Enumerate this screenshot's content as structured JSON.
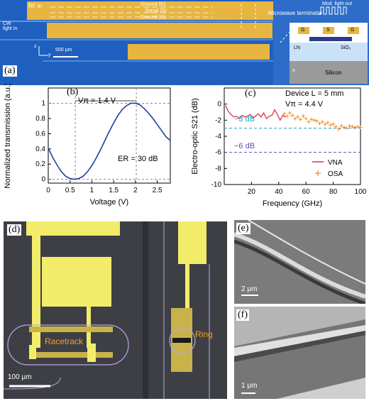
{
  "figure": {
    "panel_a": {
      "label": "(a)",
      "rf_in": "RF in",
      "cw_light": "CW\nlight in",
      "ground_top": "Ground (G)",
      "signal": "Signal (S)",
      "ground_bottom": "Ground (G)",
      "microwave_terminator": "Microwave terminator",
      "mod_light_out": "Mod. light out",
      "scale_bar": "500 µm",
      "axis_z": "z",
      "axis_y": "y",
      "axis_x": "x",
      "cs_g1": "G",
      "cs_s": "S",
      "cs_g2": "G",
      "cs_ln": "LN",
      "cs_sio2": "SiO₂",
      "cs_silicon": "Silicon"
    },
    "panel_b": {
      "label": "(b)",
      "ylabel": "Normalized transmission (a.u.)",
      "xlabel": "Voltage (V)",
      "annotation_vpi": "Vπ = 1.4 V",
      "annotation_er": "ER = 30 dB"
    },
    "panel_c": {
      "label": "(c)",
      "ylabel": "Electro-optic S21 (dB)",
      "xlabel": "Frequency (GHz)",
      "device": "Device L = 5 mm",
      "vpi": "Vπ = 4.4 V",
      "minus3": "−3 dB",
      "minus6": "−6 dB",
      "legend_vna": "VNA",
      "legend_osa": "OSA"
    },
    "panel_d": {
      "label": "(d)",
      "racetrack": "Racetrack",
      "ring": "Ring",
      "scale_bar": "100 µm"
    },
    "panel_e": {
      "label": "(e)",
      "scale_bar": "2 µm"
    },
    "panel_f": {
      "label": "(f)",
      "scale_bar": "1 µm"
    }
  },
  "chart_data": [
    {
      "type": "line",
      "panel": "b",
      "xlabel": "Voltage (V)",
      "ylabel": "Normalized transmission (a.u.)",
      "xlim": [
        0,
        2.8
      ],
      "ylim": [
        -0.05,
        1.2
      ],
      "xticks": [
        0,
        0.5,
        1,
        1.5,
        2,
        2.5
      ],
      "yticks": [
        0,
        0.2,
        0.4,
        0.6,
        0.8,
        1
      ],
      "series": [
        {
          "color": "#1f3fa0",
          "x": [
            0,
            0.1,
            0.2,
            0.3,
            0.4,
            0.5,
            0.6,
            0.7,
            0.8,
            0.9,
            1.0,
            1.1,
            1.2,
            1.3,
            1.4,
            1.5,
            1.6,
            1.7,
            1.8,
            1.9,
            2.0,
            2.1,
            2.2,
            2.3,
            2.4,
            2.5,
            2.6,
            2.7,
            2.8
          ],
          "y": [
            0.41,
            0.29,
            0.19,
            0.1,
            0.04,
            0.01,
            0.0,
            0.01,
            0.04,
            0.1,
            0.18,
            0.28,
            0.39,
            0.51,
            0.63,
            0.74,
            0.84,
            0.92,
            0.97,
            1.0,
            1.0,
            0.98,
            0.93,
            0.87,
            0.8,
            0.72,
            0.64,
            0.56,
            0.51
          ]
        }
      ],
      "reference_lines": {
        "vertical_x": [
          0.62,
          2.02
        ],
        "horizontal_y": [
          0,
          1
        ]
      }
    },
    {
      "type": "line",
      "panel": "c",
      "xlabel": "Frequency (GHz)",
      "ylabel": "Electro-optic S21 (dB)",
      "xlim": [
        0,
        100
      ],
      "ylim": [
        -10,
        2
      ],
      "xticks": [
        20,
        40,
        60,
        80,
        100
      ],
      "yticks": [
        0,
        -2,
        -4,
        -6,
        -8,
        -10
      ],
      "hlines": [
        {
          "y": -3,
          "color": "#1aa0c8"
        },
        {
          "y": -6,
          "color": "#5a4fb0"
        }
      ],
      "series": [
        {
          "name": "VNA",
          "color": "#e0304a",
          "x": [
            1,
            3,
            5,
            7,
            9,
            11,
            13,
            15,
            17,
            19,
            21,
            23,
            25,
            27,
            29,
            31,
            33,
            35,
            37,
            39,
            41,
            43,
            45
          ],
          "y": [
            -0.2,
            -0.9,
            -1.3,
            -1.6,
            -1.5,
            -1.8,
            -1.4,
            -1.6,
            -1.5,
            -1.3,
            -1.7,
            -1.5,
            -1.2,
            -1.6,
            -1.1,
            -1.8,
            -1.5,
            -1.4,
            -0.7,
            -1.3,
            -2.0,
            -1.4,
            -1.6
          ]
        },
        {
          "name": "OSA",
          "color": "#f08a24",
          "x": [
            44,
            46,
            48,
            50,
            52,
            54,
            56,
            58,
            60,
            62,
            64,
            66,
            68,
            70,
            72,
            74,
            76,
            78,
            80,
            82,
            84,
            86,
            88,
            90,
            92,
            94,
            96,
            98,
            100
          ],
          "y": [
            -1.2,
            -1.5,
            -1.1,
            -1.4,
            -1.8,
            -1.6,
            -1.9,
            -1.5,
            -1.8,
            -2.2,
            -1.9,
            -2.0,
            -2.1,
            -2.4,
            -2.2,
            -2.5,
            -2.3,
            -2.6,
            -2.5,
            -2.8,
            -3.1,
            -2.7,
            -2.9,
            -3.0,
            -2.7,
            -2.8,
            -2.9,
            -2.8,
            -2.9
          ]
        }
      ]
    }
  ]
}
